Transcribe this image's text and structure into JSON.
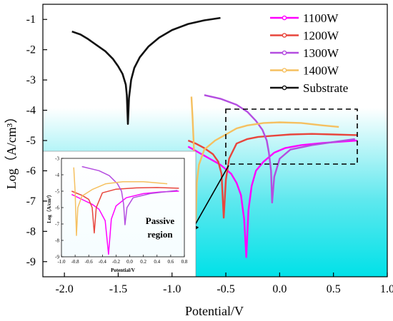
{
  "chart_data": [
    {
      "type": "line",
      "title": "",
      "xlabel": "Potential/V",
      "ylabel": "Log（A/cm³）",
      "xlim": [
        -2.2,
        1.0
      ],
      "ylim": [
        -9.5,
        -0.5
      ],
      "xticks": [
        "-2.0",
        "-1.5",
        "-1.0",
        "-0.5",
        "0.0",
        "0.5",
        "1.0"
      ],
      "yticks": [
        "-1",
        "-2",
        "-3",
        "-4",
        "-5",
        "-6",
        "-7",
        "-8",
        "-9"
      ],
      "legend_position": "top-right",
      "background": "gradient white-to-cyan",
      "annotation": {
        "text_line1": "Passive",
        "text_line2": "region"
      },
      "series": [
        {
          "name": "1100W",
          "color": "#ff00ff",
          "points": [
            [
              -0.85,
              -5.2
            ],
            [
              -0.8,
              -5.3
            ],
            [
              -0.75,
              -5.4
            ],
            [
              -0.7,
              -5.5
            ],
            [
              -0.65,
              -5.6
            ],
            [
              -0.6,
              -5.7
            ],
            [
              -0.55,
              -5.8
            ],
            [
              -0.5,
              -5.95
            ],
            [
              -0.45,
              -6.1
            ],
            [
              -0.4,
              -6.4
            ],
            [
              -0.36,
              -6.8
            ],
            [
              -0.33,
              -7.6
            ],
            [
              -0.31,
              -8.85
            ],
            [
              -0.29,
              -7.3
            ],
            [
              -0.26,
              -6.5
            ],
            [
              -0.22,
              -6.0
            ],
            [
              -0.15,
              -5.7
            ],
            [
              -0.05,
              -5.4
            ],
            [
              0.05,
              -5.25
            ],
            [
              0.2,
              -5.15
            ],
            [
              0.4,
              -5.08
            ],
            [
              0.6,
              -5.03
            ],
            [
              0.72,
              -5.0
            ]
          ]
        },
        {
          "name": "1200W",
          "color": "#e8453c",
          "points": [
            [
              -0.85,
              -5.0
            ],
            [
              -0.78,
              -5.1
            ],
            [
              -0.7,
              -5.25
            ],
            [
              -0.62,
              -5.45
            ],
            [
              -0.57,
              -5.7
            ],
            [
              -0.54,
              -6.1
            ],
            [
              -0.52,
              -7.55
            ],
            [
              -0.5,
              -6.3
            ],
            [
              -0.47,
              -5.6
            ],
            [
              -0.4,
              -5.1
            ],
            [
              -0.3,
              -4.95
            ],
            [
              -0.2,
              -4.88
            ],
            [
              -0.05,
              -4.84
            ],
            [
              0.1,
              -4.8
            ],
            [
              0.3,
              -4.78
            ],
            [
              0.5,
              -4.8
            ],
            [
              0.72,
              -4.82
            ]
          ]
        },
        {
          "name": "1300W",
          "color": "#b44de0",
          "points": [
            [
              -0.7,
              -3.5
            ],
            [
              -0.55,
              -3.62
            ],
            [
              -0.4,
              -3.82
            ],
            [
              -0.3,
              -4.05
            ],
            [
              -0.22,
              -4.35
            ],
            [
              -0.16,
              -4.65
            ],
            [
              -0.12,
              -5.0
            ],
            [
              -0.1,
              -5.4
            ],
            [
              -0.08,
              -6.0
            ],
            [
              -0.07,
              -7.05
            ],
            [
              -0.05,
              -6.2
            ],
            [
              0.0,
              -5.6
            ],
            [
              0.1,
              -5.3
            ],
            [
              0.3,
              -5.15
            ],
            [
              0.5,
              -5.05
            ],
            [
              0.7,
              -4.95
            ]
          ]
        },
        {
          "name": "1400W",
          "color": "#f5c060",
          "points": [
            [
              -0.82,
              -3.55
            ],
            [
              -0.81,
              -4.2
            ],
            [
              -0.8,
              -5.0
            ],
            [
              -0.79,
              -5.9
            ],
            [
              -0.78,
              -7.7
            ],
            [
              -0.77,
              -6.4
            ],
            [
              -0.75,
              -5.8
            ],
            [
              -0.7,
              -5.3
            ],
            [
              -0.6,
              -5.0
            ],
            [
              -0.5,
              -4.8
            ],
            [
              -0.4,
              -4.6
            ],
            [
              -0.3,
              -4.5
            ],
            [
              -0.15,
              -4.42
            ],
            [
              0.0,
              -4.4
            ],
            [
              0.2,
              -4.42
            ],
            [
              0.4,
              -4.5
            ],
            [
              0.55,
              -4.55
            ]
          ]
        },
        {
          "name": "Substrate",
          "color": "#111111",
          "points": [
            [
              -1.93,
              -1.4
            ],
            [
              -1.85,
              -1.5
            ],
            [
              -1.78,
              -1.65
            ],
            [
              -1.7,
              -1.85
            ],
            [
              -1.62,
              -2.05
            ],
            [
              -1.55,
              -2.3
            ],
            [
              -1.5,
              -2.55
            ],
            [
              -1.46,
              -2.8
            ],
            [
              -1.43,
              -3.15
            ],
            [
              -1.42,
              -3.5
            ],
            [
              -1.41,
              -4.45
            ],
            [
              -1.4,
              -3.6
            ],
            [
              -1.38,
              -3.0
            ],
            [
              -1.35,
              -2.6
            ],
            [
              -1.3,
              -2.25
            ],
            [
              -1.22,
              -1.9
            ],
            [
              -1.12,
              -1.6
            ],
            [
              -1.0,
              -1.35
            ],
            [
              -0.85,
              -1.15
            ],
            [
              -0.7,
              -1.03
            ],
            [
              -0.55,
              -0.95
            ]
          ]
        }
      ]
    },
    {
      "type": "line",
      "title": "",
      "xlabel": "Potential/V",
      "ylabel": "Log（A/cm³）",
      "xlim": [
        -1.0,
        0.8
      ],
      "ylim": [
        -9,
        -3
      ],
      "xticks": [
        "-1.0",
        "-0.8",
        "-0.6",
        "-0.4",
        "-0.2",
        "0.0",
        "0.2",
        "0.4",
        "0.6",
        "0.8"
      ],
      "yticks": [
        "-3",
        "-4",
        "-5",
        "-6",
        "-7",
        "-8",
        "-9"
      ],
      "series": [
        {
          "name": "1100W",
          "color": "#ff00ff",
          "points": [
            [
              -0.85,
              -5.2
            ],
            [
              -0.7,
              -5.5
            ],
            [
              -0.55,
              -5.8
            ],
            [
              -0.45,
              -6.1
            ],
            [
              -0.36,
              -6.8
            ],
            [
              -0.31,
              -8.85
            ],
            [
              -0.27,
              -6.7
            ],
            [
              -0.2,
              -5.9
            ],
            [
              -0.05,
              -5.4
            ],
            [
              0.2,
              -5.15
            ],
            [
              0.45,
              -5.05
            ],
            [
              0.72,
              -5.0
            ]
          ]
        },
        {
          "name": "1200W",
          "color": "#e8453c",
          "points": [
            [
              -0.85,
              -5.0
            ],
            [
              -0.7,
              -5.25
            ],
            [
              -0.6,
              -5.5
            ],
            [
              -0.55,
              -6.0
            ],
            [
              -0.52,
              -7.55
            ],
            [
              -0.49,
              -6.0
            ],
            [
              -0.4,
              -5.1
            ],
            [
              -0.2,
              -4.88
            ],
            [
              0.1,
              -4.8
            ],
            [
              0.4,
              -4.78
            ],
            [
              0.72,
              -4.82
            ]
          ]
        },
        {
          "name": "1300W",
          "color": "#b44de0",
          "points": [
            [
              -0.7,
              -3.5
            ],
            [
              -0.45,
              -3.75
            ],
            [
              -0.3,
              -4.05
            ],
            [
              -0.18,
              -4.55
            ],
            [
              -0.12,
              -5.0
            ],
            [
              -0.09,
              -5.8
            ],
            [
              -0.07,
              -7.05
            ],
            [
              -0.04,
              -6.0
            ],
            [
              0.05,
              -5.4
            ],
            [
              0.3,
              -5.15
            ],
            [
              0.7,
              -4.95
            ]
          ]
        },
        {
          "name": "1400W",
          "color": "#f5c060",
          "points": [
            [
              -0.82,
              -3.55
            ],
            [
              -0.8,
              -5.0
            ],
            [
              -0.78,
              -7.7
            ],
            [
              -0.76,
              -6.0
            ],
            [
              -0.7,
              -5.3
            ],
            [
              -0.55,
              -4.9
            ],
            [
              -0.35,
              -4.55
            ],
            [
              -0.1,
              -4.42
            ],
            [
              0.2,
              -4.42
            ],
            [
              0.55,
              -4.55
            ]
          ]
        }
      ]
    }
  ]
}
